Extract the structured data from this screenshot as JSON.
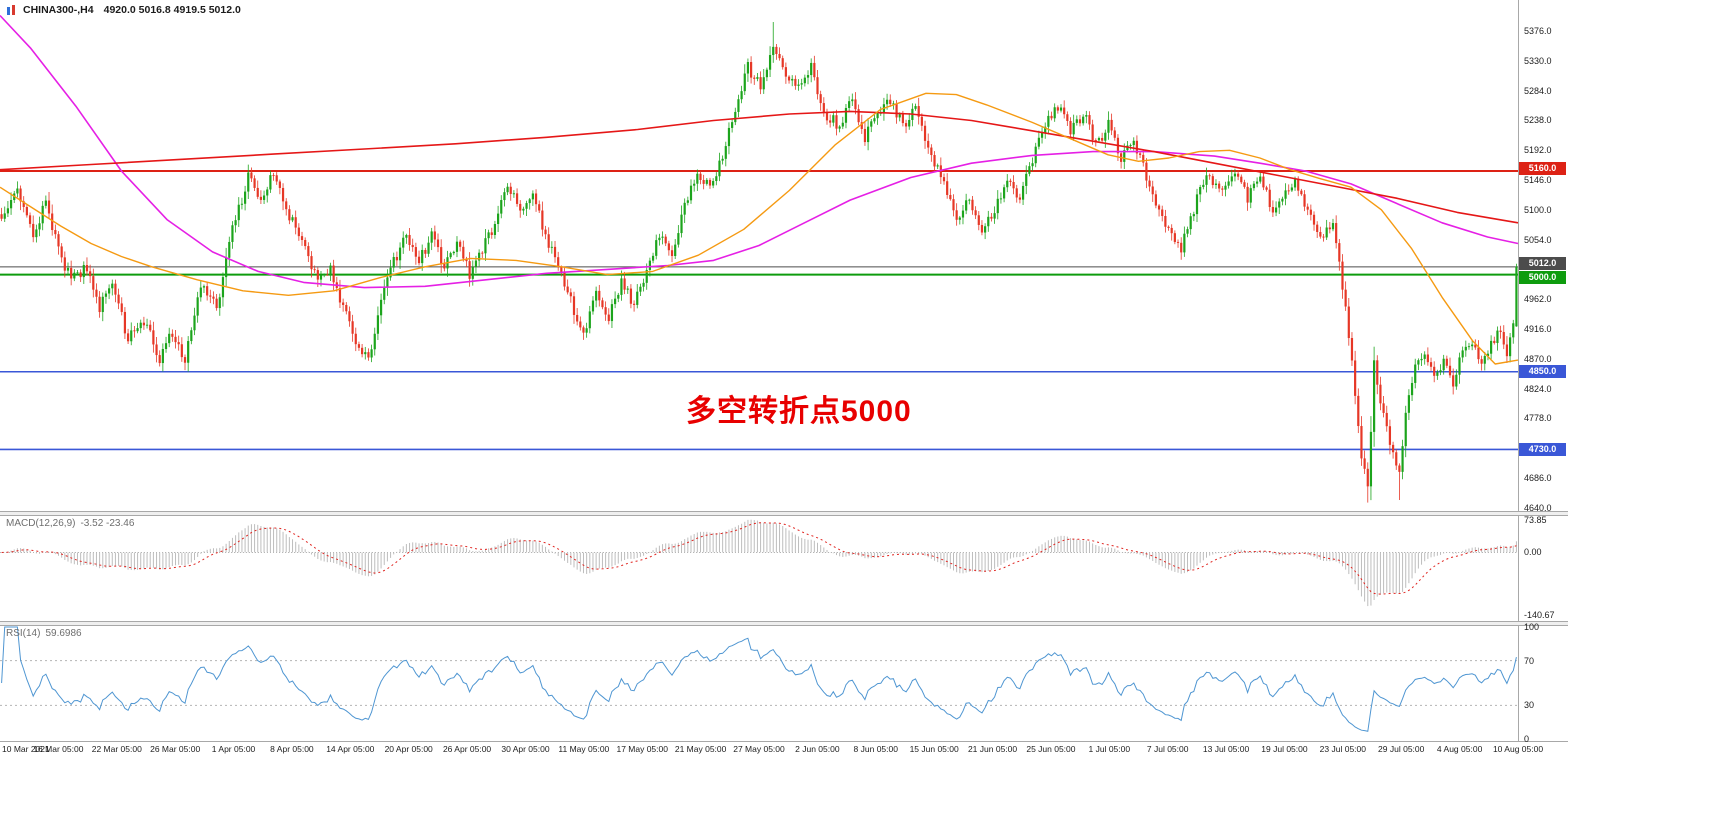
{
  "header": {
    "symbol": "CHINA300-,H4",
    "ohlc": "4920.0 5016.8 4919.5 5012.0"
  },
  "annotation": {
    "text": "多空转折点5000",
    "color": "#e80000"
  },
  "chart_data": {
    "type": "candlestick",
    "symbol": "CHINA300-",
    "timeframe": "H4",
    "title": "CHINA300-,H4",
    "ohlc_display": {
      "open": 4920.0,
      "high": 5016.8,
      "low": 4919.5,
      "close": 5012.0
    },
    "price_axis": {
      "ylim": [
        4635,
        5424
      ],
      "tick_step": 46,
      "ticks": [
        5376,
        5330,
        5284,
        5238,
        5192,
        5146,
        5100,
        5054,
        4962,
        4916,
        4870,
        4824,
        4778,
        4686,
        4640
      ]
    },
    "x_axis": {
      "labels": [
        "10 Mar 2021",
        "16 Mar 05:00",
        "22 Mar 05:00",
        "26 Mar 05:00",
        "1 Apr 05:00",
        "8 Apr 05:00",
        "14 Apr 05:00",
        "20 Apr 05:00",
        "26 Apr 05:00",
        "30 Apr 05:00",
        "11 May 05:00",
        "17 May 05:00",
        "21 May 05:00",
        "27 May 05:00",
        "2 Jun 05:00",
        "8 Jun 05:00",
        "15 Jun 05:00",
        "21 Jun 05:00",
        "25 Jun 05:00",
        "1 Jul 05:00",
        "7 Jul 05:00",
        "13 Jul 05:00",
        "19 Jul 05:00",
        "23 Jul 05:00",
        "29 Jul 05:00",
        "4 Aug 05:00",
        "10 Aug 05:00"
      ]
    },
    "candles": {
      "count": 480,
      "up_color": "#1ca41c",
      "down_color": "#e63726",
      "close_waypoints": [
        [
          0,
          5090
        ],
        [
          5,
          5130
        ],
        [
          10,
          5060
        ],
        [
          14,
          5110
        ],
        [
          18,
          5040
        ],
        [
          22,
          4990
        ],
        [
          27,
          5010
        ],
        [
          31,
          4950
        ],
        [
          35,
          4990
        ],
        [
          40,
          4900
        ],
        [
          45,
          4930
        ],
        [
          50,
          4870
        ],
        [
          54,
          4910
        ],
        [
          58,
          4865
        ],
        [
          63,
          4985
        ],
        [
          68,
          4950
        ],
        [
          73,
          5070
        ],
        [
          78,
          5150
        ],
        [
          82,
          5120
        ],
        [
          86,
          5160
        ],
        [
          90,
          5100
        ],
        [
          95,
          5050
        ],
        [
          100,
          4990
        ],
        [
          104,
          5010
        ],
        [
          108,
          4950
        ],
        [
          112,
          4900
        ],
        [
          116,
          4865
        ],
        [
          120,
          4960
        ],
        [
          124,
          5020
        ],
        [
          128,
          5060
        ],
        [
          132,
          5020
        ],
        [
          136,
          5060
        ],
        [
          140,
          5010
        ],
        [
          144,
          5050
        ],
        [
          148,
          5000
        ],
        [
          152,
          5040
        ],
        [
          156,
          5080
        ],
        [
          160,
          5140
        ],
        [
          164,
          5100
        ],
        [
          168,
          5130
        ],
        [
          172,
          5060
        ],
        [
          176,
          5010
        ],
        [
          180,
          4960
        ],
        [
          184,
          4905
        ],
        [
          188,
          4970
        ],
        [
          192,
          4935
        ],
        [
          196,
          4990
        ],
        [
          200,
          4955
        ],
        [
          204,
          5010
        ],
        [
          208,
          5060
        ],
        [
          212,
          5030
        ],
        [
          216,
          5110
        ],
        [
          220,
          5160
        ],
        [
          224,
          5130
        ],
        [
          228,
          5180
        ],
        [
          232,
          5260
        ],
        [
          236,
          5320
        ],
        [
          240,
          5290
        ],
        [
          244,
          5355
        ],
        [
          248,
          5310
        ],
        [
          252,
          5290
        ],
        [
          256,
          5320
        ],
        [
          260,
          5250
        ],
        [
          265,
          5230
        ],
        [
          269,
          5270
        ],
        [
          273,
          5210
        ],
        [
          277,
          5250
        ],
        [
          281,
          5270
        ],
        [
          285,
          5230
        ],
        [
          289,
          5260
        ],
        [
          293,
          5190
        ],
        [
          297,
          5150
        ],
        [
          302,
          5080
        ],
        [
          306,
          5120
        ],
        [
          310,
          5070
        ],
        [
          314,
          5100
        ],
        [
          318,
          5150
        ],
        [
          322,
          5120
        ],
        [
          326,
          5180
        ],
        [
          330,
          5230
        ],
        [
          334,
          5260
        ],
        [
          338,
          5220
        ],
        [
          342,
          5250
        ],
        [
          346,
          5200
        ],
        [
          350,
          5230
        ],
        [
          354,
          5180
        ],
        [
          358,
          5210
        ],
        [
          362,
          5150
        ],
        [
          366,
          5100
        ],
        [
          370,
          5060
        ],
        [
          373,
          5040
        ],
        [
          377,
          5100
        ],
        [
          381,
          5160
        ],
        [
          385,
          5130
        ],
        [
          390,
          5160
        ],
        [
          394,
          5120
        ],
        [
          398,
          5150
        ],
        [
          402,
          5100
        ],
        [
          406,
          5130
        ],
        [
          409,
          5150
        ],
        [
          413,
          5100
        ],
        [
          417,
          5060
        ],
        [
          421,
          5080
        ],
        [
          425,
          4950
        ],
        [
          428,
          4820
        ],
        [
          430,
          4720
        ],
        [
          432,
          4670
        ],
        [
          434,
          4860
        ],
        [
          436,
          4800
        ],
        [
          438,
          4760
        ],
        [
          440,
          4730
        ],
        [
          442,
          4690
        ],
        [
          444,
          4780
        ],
        [
          447,
          4860
        ],
        [
          450,
          4880
        ],
        [
          453,
          4840
        ],
        [
          456,
          4870
        ],
        [
          459,
          4830
        ],
        [
          462,
          4880
        ],
        [
          465,
          4900
        ],
        [
          468,
          4860
        ],
        [
          471,
          4890
        ],
        [
          474,
          4920
        ],
        [
          476,
          4880
        ],
        [
          477,
          4900
        ],
        [
          478,
          4920
        ],
        [
          479,
          5012
        ]
      ],
      "wick_overrides": [
        [
          244,
          "high",
          5390
        ],
        [
          432,
          "low",
          4648
        ],
        [
          442,
          "low",
          4652
        ]
      ],
      "last_candle": {
        "open": 4920.0,
        "high": 5016.8,
        "low": 4919.5,
        "close": 5012.0
      }
    },
    "moving_averages": [
      {
        "name": "slow-magenta",
        "color": "#e520e5",
        "width": 1.6,
        "points": [
          [
            0,
            5400
          ],
          [
            0.02,
            5350
          ],
          [
            0.05,
            5260
          ],
          [
            0.08,
            5160
          ],
          [
            0.11,
            5085
          ],
          [
            0.14,
            5035
          ],
          [
            0.17,
            5005
          ],
          [
            0.2,
            4988
          ],
          [
            0.24,
            4980
          ],
          [
            0.28,
            4982
          ],
          [
            0.32,
            4992
          ],
          [
            0.36,
            5002
          ],
          [
            0.4,
            5008
          ],
          [
            0.44,
            5014
          ],
          [
            0.47,
            5022
          ],
          [
            0.5,
            5045
          ],
          [
            0.53,
            5080
          ],
          [
            0.56,
            5115
          ],
          [
            0.6,
            5150
          ],
          [
            0.64,
            5172
          ],
          [
            0.68,
            5184
          ],
          [
            0.72,
            5190
          ],
          [
            0.76,
            5190
          ],
          [
            0.8,
            5183
          ],
          [
            0.83,
            5172
          ],
          [
            0.86,
            5160
          ],
          [
            0.89,
            5140
          ],
          [
            0.92,
            5110
          ],
          [
            0.95,
            5080
          ],
          [
            0.98,
            5058
          ],
          [
            1.0,
            5048
          ]
        ]
      },
      {
        "name": "long-red",
        "color": "#e51717",
        "width": 1.6,
        "points": [
          [
            0,
            5162
          ],
          [
            0.06,
            5170
          ],
          [
            0.12,
            5178
          ],
          [
            0.18,
            5186
          ],
          [
            0.24,
            5194
          ],
          [
            0.3,
            5202
          ],
          [
            0.36,
            5212
          ],
          [
            0.42,
            5224
          ],
          [
            0.47,
            5238
          ],
          [
            0.52,
            5248
          ],
          [
            0.56,
            5252
          ],
          [
            0.6,
            5248
          ],
          [
            0.64,
            5238
          ],
          [
            0.68,
            5222
          ],
          [
            0.72,
            5206
          ],
          [
            0.76,
            5190
          ],
          [
            0.8,
            5172
          ],
          [
            0.84,
            5154
          ],
          [
            0.88,
            5136
          ],
          [
            0.92,
            5118
          ],
          [
            0.96,
            5096
          ],
          [
            1.0,
            5080
          ]
        ]
      },
      {
        "name": "fast-orange",
        "color": "#f59a12",
        "width": 1.4,
        "points": [
          [
            0,
            5135
          ],
          [
            0.02,
            5105
          ],
          [
            0.04,
            5075
          ],
          [
            0.06,
            5048
          ],
          [
            0.08,
            5028
          ],
          [
            0.1,
            5012
          ],
          [
            0.13,
            4992
          ],
          [
            0.16,
            4975
          ],
          [
            0.19,
            4968
          ],
          [
            0.22,
            4975
          ],
          [
            0.25,
            4995
          ],
          [
            0.28,
            5012
          ],
          [
            0.31,
            5025
          ],
          [
            0.34,
            5022
          ],
          [
            0.37,
            5012
          ],
          [
            0.4,
            5000
          ],
          [
            0.43,
            5005
          ],
          [
            0.46,
            5030
          ],
          [
            0.49,
            5070
          ],
          [
            0.52,
            5130
          ],
          [
            0.55,
            5200
          ],
          [
            0.58,
            5255
          ],
          [
            0.61,
            5280
          ],
          [
            0.63,
            5278
          ],
          [
            0.65,
            5262
          ],
          [
            0.68,
            5235
          ],
          [
            0.71,
            5205
          ],
          [
            0.73,
            5185
          ],
          [
            0.75,
            5175
          ],
          [
            0.77,
            5180
          ],
          [
            0.79,
            5190
          ],
          [
            0.81,
            5192
          ],
          [
            0.83,
            5180
          ],
          [
            0.85,
            5162
          ],
          [
            0.87,
            5148
          ],
          [
            0.89,
            5135
          ],
          [
            0.91,
            5100
          ],
          [
            0.93,
            5040
          ],
          [
            0.95,
            4965
          ],
          [
            0.97,
            4898
          ],
          [
            0.985,
            4862
          ],
          [
            1.0,
            4868
          ]
        ]
      }
    ],
    "levels": [
      {
        "label": "5160.0",
        "price": 5160,
        "color": "#dd2215",
        "line_width": 2,
        "tag_dy": -2
      },
      {
        "label": "5012.0",
        "price": 5012,
        "color": "#4c4c4c",
        "line_width": 1,
        "tag_dy": -3
      },
      {
        "label": "5000.0",
        "price": 5000,
        "color": "#0e9c0e",
        "line_width": 2,
        "tag_dy": 3
      },
      {
        "label": "4850.0",
        "price": 4850,
        "color": "#3a57d7",
        "line_width": 1.6,
        "tag_dy": 0
      },
      {
        "label": "4730.0",
        "price": 4730,
        "color": "#3a57d7",
        "line_width": 1.6,
        "tag_dy": 0
      }
    ],
    "macd": {
      "label": "MACD(12,26,9)",
      "values": "-3.52 -23.46",
      "params": [
        12,
        26,
        9
      ],
      "axis": [
        {
          "label": "73.85",
          "value": 73.85
        },
        {
          "label": "0.00",
          "value": 0
        },
        {
          "label": "-140.67",
          "value": -140.67
        }
      ],
      "histogram_color": "#bdbdbd",
      "signal_color": "#e02520"
    },
    "rsi": {
      "label": "RSI(14)",
      "value": "59.6986",
      "period": 14,
      "axis": [
        {
          "label": "100",
          "value": 100
        },
        {
          "label": "70",
          "value": 70
        },
        {
          "label": "30",
          "value": 30
        },
        {
          "label": "0",
          "value": 0
        }
      ],
      "guides": [
        70,
        30
      ],
      "line_color": "#4f96d2"
    }
  }
}
